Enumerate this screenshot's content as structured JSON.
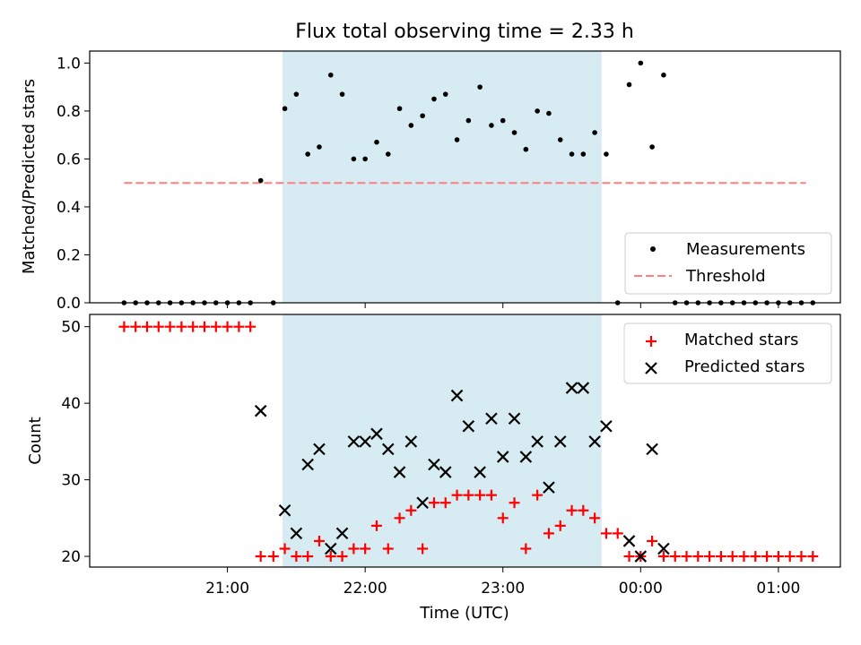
{
  "chart_data": [
    {
      "type": "scatter",
      "title": "Flux total observing time = 2.33 h",
      "ylabel": "Matched/Predicted stars",
      "xlabel": "",
      "ylim": [
        0,
        1.05
      ],
      "yticks": [
        0.0,
        0.2,
        0.4,
        0.6,
        0.8,
        1.0
      ],
      "ytick_labels": [
        "0.0",
        "0.2",
        "0.4",
        "0.6",
        "0.8",
        "1.0"
      ],
      "x_is_time": true,
      "x_unit": "minutes after 20:00 UTC",
      "xlim": [
        0,
        327
      ],
      "shaded_region": {
        "from": 84,
        "to": 223,
        "color": "#add8e6"
      },
      "threshold": {
        "value": 0.5,
        "from": 15,
        "to": 312,
        "label": "Threshold",
        "color": "#ff7f7f"
      },
      "legend": {
        "position": "lower right",
        "entries": [
          "Measurements",
          "Threshold"
        ]
      },
      "series": [
        {
          "name": "Measurements",
          "color": "#000000",
          "points": [
            [
              15,
              0
            ],
            [
              20,
              0
            ],
            [
              25,
              0
            ],
            [
              30,
              0
            ],
            [
              35,
              0
            ],
            [
              40,
              0
            ],
            [
              45,
              0
            ],
            [
              50,
              0
            ],
            [
              55,
              0
            ],
            [
              60,
              0
            ],
            [
              65,
              0
            ],
            [
              70,
              0
            ],
            [
              74.5,
              0.51
            ],
            [
              80,
              0
            ],
            [
              85,
              0.81
            ],
            [
              90,
              0.87
            ],
            [
              95,
              0.62
            ],
            [
              100,
              0.65
            ],
            [
              105,
              0.95
            ],
            [
              110,
              0.87
            ],
            [
              115,
              0.6
            ],
            [
              120,
              0.6
            ],
            [
              125,
              0.67
            ],
            [
              130,
              0.62
            ],
            [
              135,
              0.81
            ],
            [
              140,
              0.74
            ],
            [
              145,
              0.78
            ],
            [
              150,
              0.85
            ],
            [
              155,
              0.87
            ],
            [
              160,
              0.68
            ],
            [
              165,
              0.76
            ],
            [
              170,
              0.9
            ],
            [
              175,
              0.74
            ],
            [
              180,
              0.76
            ],
            [
              185,
              0.71
            ],
            [
              190,
              0.64
            ],
            [
              195,
              0.8
            ],
            [
              200,
              0.79
            ],
            [
              205,
              0.68
            ],
            [
              210,
              0.62
            ],
            [
              215,
              0.62
            ],
            [
              220,
              0.71
            ],
            [
              225,
              0.62
            ],
            [
              230,
              0
            ],
            [
              235,
              0.91
            ],
            [
              240,
              1.0
            ],
            [
              245,
              0.65
            ],
            [
              250,
              0.95
            ],
            [
              255,
              0
            ],
            [
              260,
              0
            ],
            [
              265,
              0
            ],
            [
              270,
              0
            ],
            [
              275,
              0
            ],
            [
              280,
              0
            ],
            [
              285,
              0
            ],
            [
              290,
              0
            ],
            [
              295,
              0
            ],
            [
              300,
              0
            ],
            [
              305,
              0
            ],
            [
              310,
              0
            ],
            [
              315,
              0
            ]
          ]
        }
      ]
    },
    {
      "type": "scatter",
      "title": "",
      "ylabel": "Count",
      "xlabel": "Time (UTC)",
      "ylim": [
        18.6,
        51.6
      ],
      "yticks": [
        20,
        30,
        40,
        50
      ],
      "ytick_labels": [
        "20",
        "30",
        "40",
        "50"
      ],
      "x_is_time": true,
      "x_unit": "minutes after 20:00 UTC",
      "xlim": [
        0,
        327
      ],
      "xticks": [
        60,
        120,
        180,
        240,
        300
      ],
      "xtick_labels": [
        "21:00",
        "22:00",
        "23:00",
        "00:00",
        "01:00"
      ],
      "shaded_region": {
        "from": 84,
        "to": 223,
        "color": "#add8e6"
      },
      "legend": {
        "position": "upper right",
        "entries": [
          "Matched stars",
          "Predicted stars"
        ]
      },
      "series": [
        {
          "name": "Matched stars",
          "marker": "plus",
          "color": "#ff0000",
          "points": [
            [
              15,
              50
            ],
            [
              20,
              50
            ],
            [
              25,
              50
            ],
            [
              30,
              50
            ],
            [
              35,
              50
            ],
            [
              40,
              50
            ],
            [
              45,
              50
            ],
            [
              50,
              50
            ],
            [
              55,
              50
            ],
            [
              60,
              50
            ],
            [
              65,
              50
            ],
            [
              70,
              50
            ],
            [
              74.5,
              20
            ],
            [
              80,
              20
            ],
            [
              85,
              21
            ],
            [
              90,
              20
            ],
            [
              95,
              20
            ],
            [
              100,
              22
            ],
            [
              105,
              20
            ],
            [
              110,
              20
            ],
            [
              115,
              21
            ],
            [
              120,
              21
            ],
            [
              125,
              24
            ],
            [
              130,
              21
            ],
            [
              135,
              25
            ],
            [
              140,
              26
            ],
            [
              145,
              21
            ],
            [
              150,
              27
            ],
            [
              155,
              27
            ],
            [
              160,
              28
            ],
            [
              165,
              28
            ],
            [
              170,
              28
            ],
            [
              175,
              28
            ],
            [
              180,
              25
            ],
            [
              185,
              27
            ],
            [
              190,
              21
            ],
            [
              195,
              28
            ],
            [
              200,
              23
            ],
            [
              205,
              24
            ],
            [
              210,
              26
            ],
            [
              215,
              26
            ],
            [
              220,
              25
            ],
            [
              225,
              23
            ],
            [
              230,
              23
            ],
            [
              235,
              20
            ],
            [
              240,
              20
            ],
            [
              245,
              22
            ],
            [
              250,
              20
            ],
            [
              255,
              20
            ],
            [
              260,
              20
            ],
            [
              265,
              20
            ],
            [
              270,
              20
            ],
            [
              275,
              20
            ],
            [
              280,
              20
            ],
            [
              285,
              20
            ],
            [
              290,
              20
            ],
            [
              295,
              20
            ],
            [
              300,
              20
            ],
            [
              305,
              20
            ],
            [
              310,
              20
            ],
            [
              315,
              20
            ]
          ]
        },
        {
          "name": "Predicted stars",
          "marker": "x",
          "color": "#000000",
          "points": [
            [
              74.5,
              39
            ],
            [
              85,
              26
            ],
            [
              90,
              23
            ],
            [
              95,
              32
            ],
            [
              100,
              34
            ],
            [
              105,
              21
            ],
            [
              110,
              23
            ],
            [
              115,
              35
            ],
            [
              120,
              35
            ],
            [
              125,
              36
            ],
            [
              130,
              34
            ],
            [
              135,
              31
            ],
            [
              140,
              35
            ],
            [
              145,
              27
            ],
            [
              150,
              32
            ],
            [
              155,
              31
            ],
            [
              160,
              41
            ],
            [
              165,
              37
            ],
            [
              170,
              31
            ],
            [
              175,
              38
            ],
            [
              180,
              33
            ],
            [
              185,
              38
            ],
            [
              190,
              33
            ],
            [
              195,
              35
            ],
            [
              200,
              29
            ],
            [
              205,
              35
            ],
            [
              210,
              42
            ],
            [
              215,
              42
            ],
            [
              220,
              35
            ],
            [
              225,
              37
            ],
            [
              235,
              22
            ],
            [
              240,
              20
            ],
            [
              245,
              34
            ],
            [
              250,
              21
            ]
          ]
        }
      ]
    }
  ]
}
